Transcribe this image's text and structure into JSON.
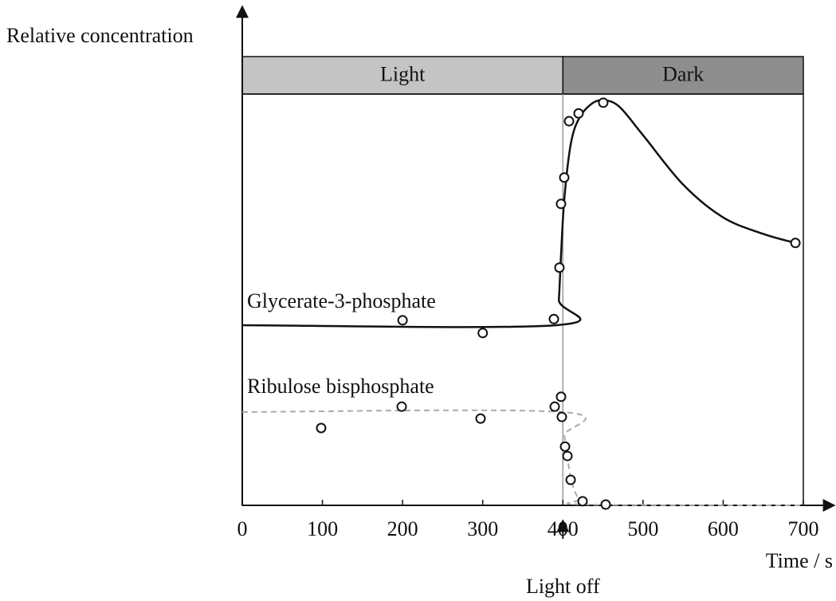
{
  "chart_data": {
    "type": "scatter",
    "y_label": "Relative concentration",
    "x_label": "Time / s",
    "xlim": [
      0,
      700
    ],
    "xticks": [
      0,
      100,
      200,
      300,
      400,
      500,
      600,
      700
    ],
    "ylim": [
      0,
      100
    ],
    "bands": [
      {
        "label": "Light",
        "start": 0,
        "end": 400,
        "color": "#c4c4c4"
      },
      {
        "label": "Dark",
        "start": 400,
        "end": 700,
        "color": "#8e8e8e"
      }
    ],
    "annotation": {
      "text": "Light off",
      "x": 400
    },
    "series": [
      {
        "name": "Glycerate-3-phosphate",
        "color": "#111111",
        "dashed": false,
        "x": [
          200,
          300,
          388.8,
          395.7,
          397.7,
          401.7,
          407.7,
          419.6,
          450.4,
          690.1
        ],
        "values": [
          45.0,
          41.9,
          45.3,
          57.8,
          73.3,
          79.7,
          93.4,
          95.3,
          97.9,
          63.8
        ],
        "curve_x": [
          0,
          392,
          395,
          398,
          402,
          410,
          420,
          435,
          450,
          470,
          500,
          550,
          600,
          650,
          690
        ],
        "curve_values": [
          43.8,
          43.8,
          50,
          62,
          75,
          88,
          94,
          97.5,
          98.5,
          97,
          90,
          78,
          70,
          66,
          63.8
        ]
      },
      {
        "name": "Ribulose bisphosphate",
        "color": "#aaaaaa",
        "dashed": true,
        "x": [
          98.4,
          198.9,
          297.3,
          389.8,
          397.7,
          398.7,
          402.7,
          405.7,
          409.7,
          424.6,
          453.4
        ],
        "values": [
          18.8,
          24.0,
          21.1,
          24.0,
          26.4,
          21.5,
          14.3,
          12.0,
          6.2,
          1.0,
          0.2
        ],
        "curve_x": [
          0,
          398,
          402,
          406,
          412,
          420,
          428,
          700
        ],
        "curve_values": [
          22.7,
          22.7,
          17,
          11,
          5,
          1.5,
          0.2,
          0
        ]
      }
    ]
  }
}
